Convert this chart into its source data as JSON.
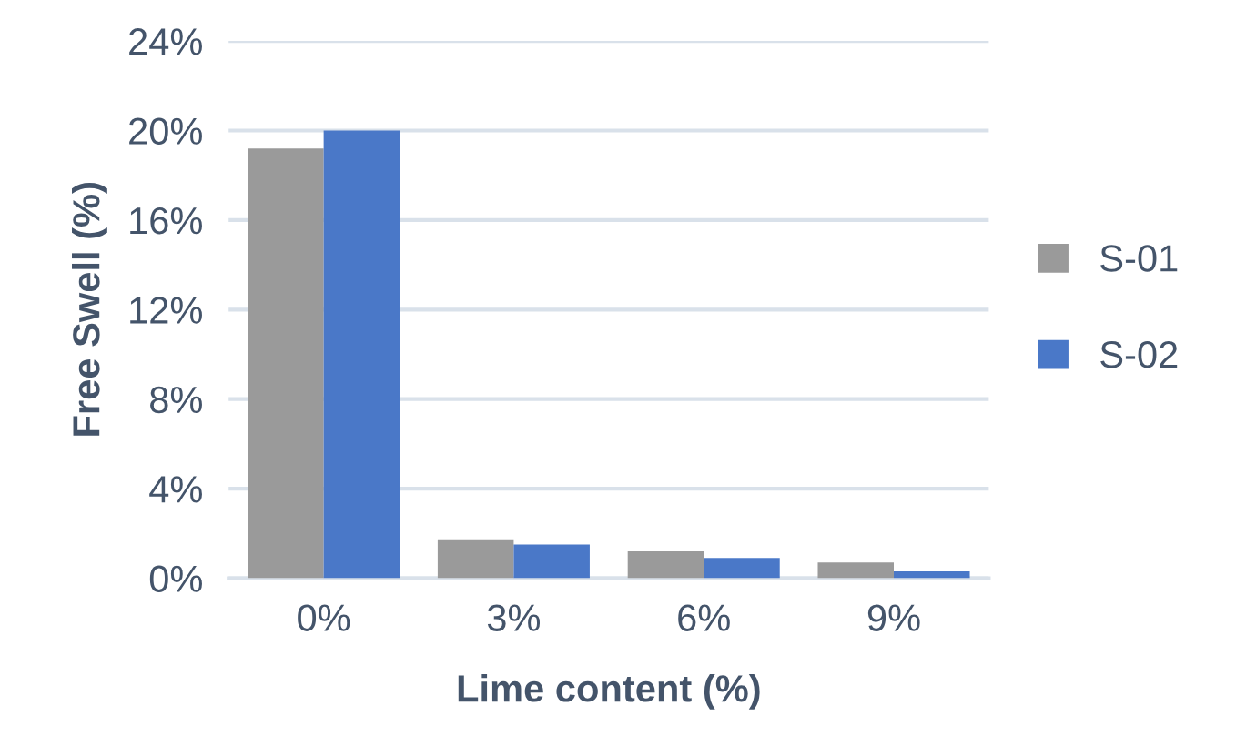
{
  "chart_data": {
    "type": "bar",
    "xlabel": "Lime content (%)",
    "ylabel": "Free Swell (%)",
    "categories": [
      "0%",
      "3%",
      "6%",
      "9%"
    ],
    "series": [
      {
        "name": "S-01",
        "color": "#9a9a9a",
        "values": [
          19.2,
          1.7,
          1.2,
          0.7
        ]
      },
      {
        "name": "S-02",
        "color": "#4a78c8",
        "values": [
          20.0,
          1.5,
          0.9,
          0.3
        ]
      }
    ],
    "ylim": [
      0,
      24
    ],
    "yticks": [
      {
        "value": 0,
        "label": "0%"
      },
      {
        "value": 4,
        "label": "4%"
      },
      {
        "value": 8,
        "label": "8%"
      },
      {
        "value": 12,
        "label": "12%"
      },
      {
        "value": 16,
        "label": "16%"
      },
      {
        "value": 20,
        "label": "20%"
      },
      {
        "value": 24,
        "label": "24%"
      }
    ],
    "grid": "y",
    "legend": "right"
  }
}
